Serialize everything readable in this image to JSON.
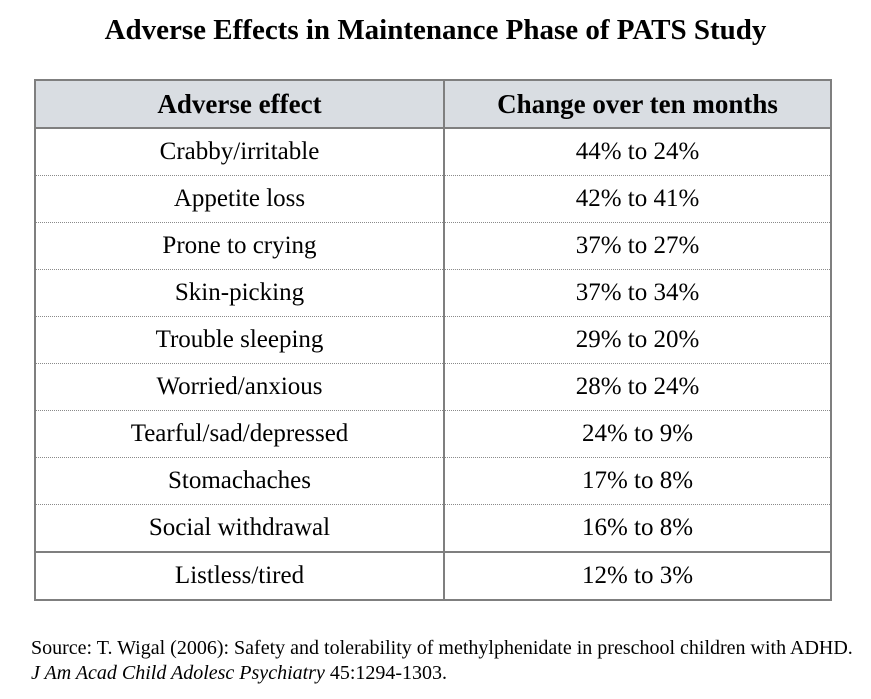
{
  "title": "Adverse Effects in Maintenance Phase of PATS Study",
  "table": {
    "headers": [
      "Adverse effect",
      "Change over ten months"
    ],
    "rows": [
      [
        "Crabby/irritable",
        "44% to 24%"
      ],
      [
        "Appetite loss",
        "42% to 41%"
      ],
      [
        "Prone to crying",
        "37% to 27%"
      ],
      [
        "Skin-picking",
        "37% to 34%"
      ],
      [
        "Trouble sleeping",
        "29% to 20%"
      ],
      [
        "Worried/anxious",
        "28% to 24%"
      ],
      [
        "Tearful/sad/depressed",
        "24% to 9%"
      ],
      [
        "Stomachaches",
        "17% to 8%"
      ],
      [
        "Social withdrawal",
        "16% to 8%"
      ],
      [
        "Listless/tired",
        "12% to 3%"
      ]
    ]
  },
  "source": {
    "prefix": "Source: T. Wigal (2006): Safety and tolerability of methylphenidate in preschool children with ADHD. ",
    "journal": "J Am Acad Child Adolesc Psychiatry",
    "suffix": " 45:1294-1303."
  }
}
